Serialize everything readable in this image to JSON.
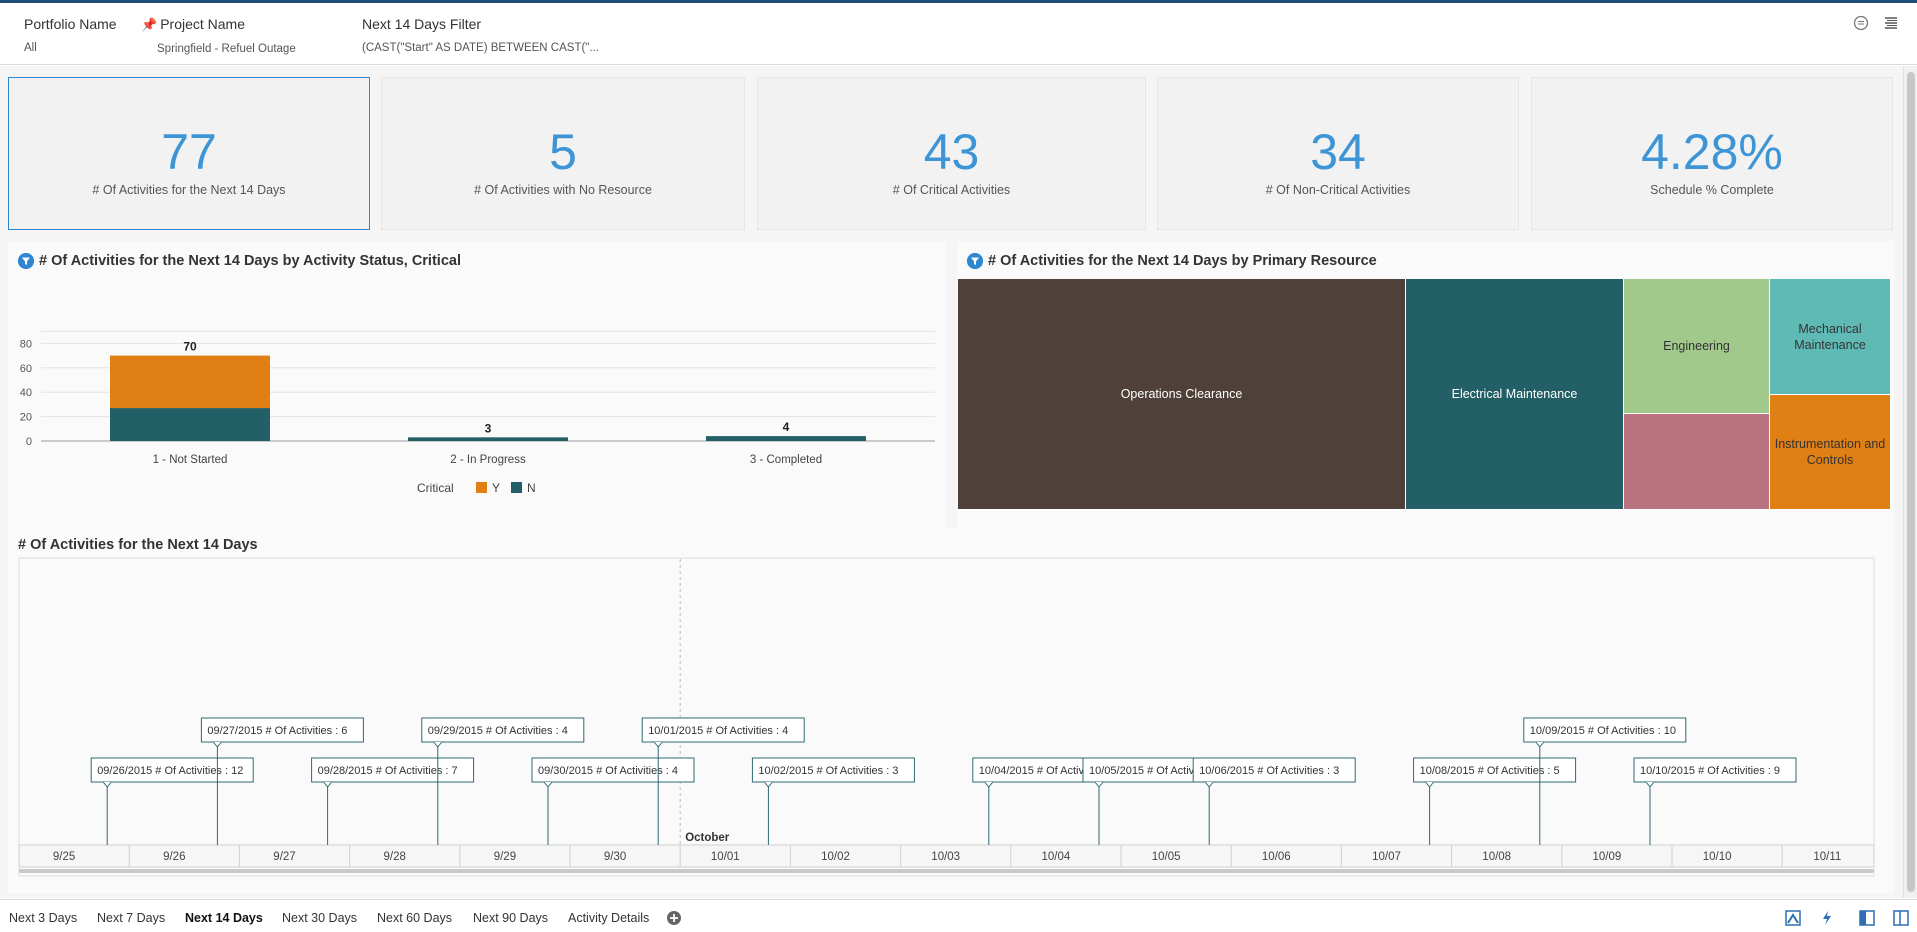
{
  "filters": [
    {
      "label": "Portfolio Name",
      "value": "All",
      "pinned": false
    },
    {
      "label": "Project Name",
      "value": "Springfield - Refuel Outage",
      "pinned": true
    },
    {
      "label": "Next 14 Days Filter",
      "value": "(CAST(\"Start\" AS DATE) BETWEEN CAST(\"..."
    }
  ],
  "kpis": [
    {
      "value": "77",
      "label": "# Of Activities for the Next 14 Days"
    },
    {
      "value": "5",
      "label": "# Of Activities with No Resource"
    },
    {
      "value": "43",
      "label": "# Of Critical Activities"
    },
    {
      "value": "34",
      "label": "# Of Non-Critical Activities"
    },
    {
      "value": "4.28%",
      "label": "Schedule % Complete"
    }
  ],
  "bar_panel": {
    "title": "# Of Activities for the Next 14 Days by Activity Status, Critical"
  },
  "treemap_panel": {
    "title": "# Of Activities for the Next 14 Days by Primary Resource",
    "cells": [
      {
        "label": "Operations Clearance",
        "color": "#4f4039"
      },
      {
        "label": "Electrical Maintenance",
        "color": "#225f66"
      },
      {
        "label": "Engineering",
        "color": "#a1c98b"
      },
      {
        "label": "Mechanical Maintenance",
        "color": "#5fbab6"
      },
      {
        "label": "",
        "color": "#b97280"
      },
      {
        "label": "Instrumentation and Controls",
        "color": "#e07f14"
      }
    ]
  },
  "timeline_panel": {
    "title": "# Of Activities for the Next 14 Days"
  },
  "chart_data": [
    {
      "type": "bar",
      "stacked": true,
      "categories": [
        "1 - Not Started",
        "2 - In Progress",
        "3 - Completed"
      ],
      "series": [
        {
          "name": "N",
          "values": [
            27,
            3,
            4
          ],
          "color": "#225f66"
        },
        {
          "name": "Y",
          "values": [
            43,
            0,
            0
          ],
          "color": "#e07f14"
        }
      ],
      "totals": [
        70,
        3,
        4
      ],
      "legend_title": "Critical",
      "legend_placement": "bottom",
      "yticks": [
        0,
        20,
        40,
        60,
        80
      ],
      "ylim": [
        0,
        90
      ],
      "grid": true
    },
    {
      "type": "line",
      "subtype": "timeline",
      "x_ticks": [
        "9/25",
        "9/26",
        "9/27",
        "9/28",
        "9/29",
        "9/30",
        "10/01",
        "10/02",
        "10/03",
        "10/04",
        "10/05",
        "10/06",
        "10/07",
        "10/08",
        "10/09",
        "10/10",
        "10/11"
      ],
      "month_marker": {
        "label": "October",
        "at": "10/01"
      },
      "series_label": "# Of Activities",
      "points": [
        {
          "date": "09/26/2015",
          "tick": "9/26",
          "value": 12
        },
        {
          "date": "09/27/2015",
          "tick": "9/27",
          "value": 6
        },
        {
          "date": "09/28/2015",
          "tick": "9/28",
          "value": 7
        },
        {
          "date": "09/29/2015",
          "tick": "9/29",
          "value": 4
        },
        {
          "date": "09/30/2015",
          "tick": "9/30",
          "value": 4
        },
        {
          "date": "10/01/2015",
          "tick": "10/01",
          "value": 4
        },
        {
          "date": "10/02/2015",
          "tick": "10/02",
          "value": 3
        },
        {
          "date": "10/04/2015",
          "tick": "10/04",
          "value": 5
        },
        {
          "date": "10/05/2015",
          "tick": "10/05",
          "value": 5
        },
        {
          "date": "10/06/2015",
          "tick": "10/06",
          "value": 3
        },
        {
          "date": "10/08/2015",
          "tick": "10/08",
          "value": 5
        },
        {
          "date": "10/09/2015",
          "tick": "10/09",
          "value": 10
        },
        {
          "date": "10/10/2015",
          "tick": "10/10",
          "value": 9
        }
      ]
    }
  ],
  "tabs": [
    {
      "label": "Next 3 Days",
      "active": false
    },
    {
      "label": "Next 7 Days",
      "active": false
    },
    {
      "label": "Next 14 Days",
      "active": true
    },
    {
      "label": "Next 30 Days",
      "active": false
    },
    {
      "label": "Next 60 Days",
      "active": false
    },
    {
      "label": "Next 90 Days",
      "active": false
    },
    {
      "label": "Activity Details",
      "active": false
    }
  ],
  "icons": {
    "top": [
      "speech-bubble-icon",
      "hamburger-menu-icon"
    ],
    "add_tab": "plus-circle-icon",
    "bottom": [
      "present-icon",
      "refresh-icon",
      "single-pane-icon",
      "split-pane-icon"
    ]
  }
}
